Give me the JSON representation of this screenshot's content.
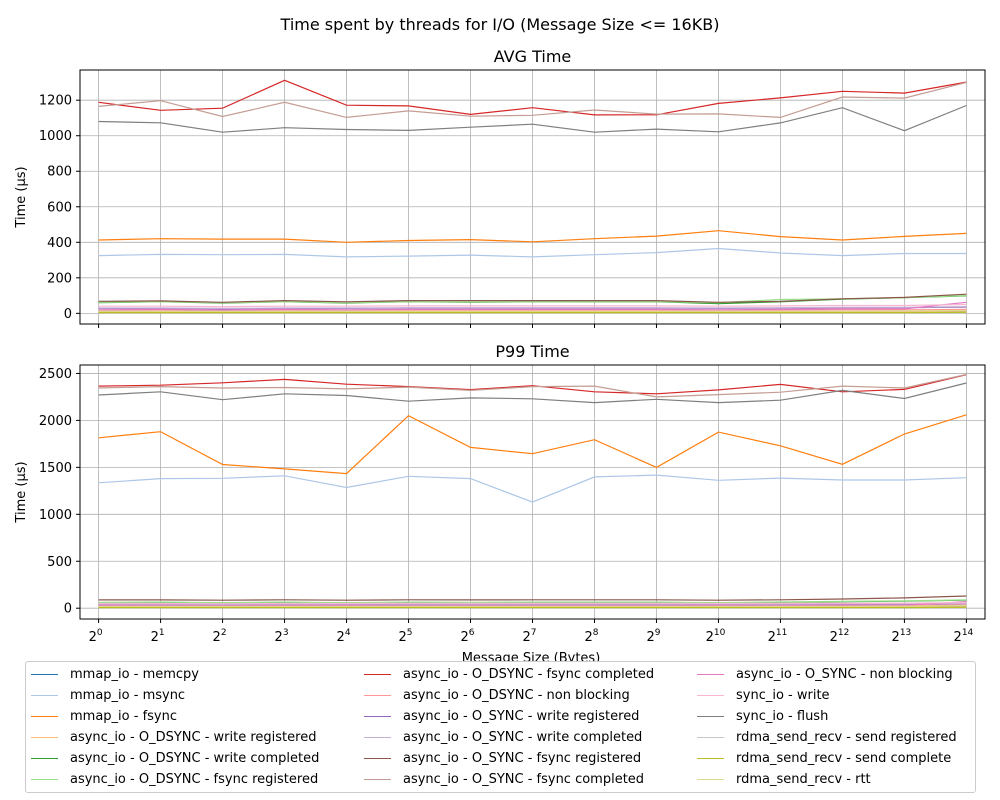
{
  "figure": {
    "suptitle": "Time spent by threads for I/O (Message Size <= 16KB)",
    "xlabel": "Message Size (Bytes)"
  },
  "chart_data": [
    {
      "type": "line",
      "title": "AVG Time",
      "xlabel": "",
      "ylabel": "Time (µs)",
      "x_exponents": [
        0,
        1,
        2,
        3,
        4,
        5,
        6,
        7,
        8,
        9,
        10,
        11,
        12,
        13,
        14
      ],
      "x_tick_base": "2",
      "ylim": [
        -60,
        1370
      ],
      "yticks": [
        0,
        200,
        400,
        600,
        800,
        1000,
        1200
      ],
      "grid": true,
      "series": [
        {
          "name": "mmap_io - memcpy",
          "color": "#1f77b4",
          "values": [
            8,
            8,
            8,
            8,
            8,
            8,
            8,
            8,
            8,
            8,
            8,
            8,
            8,
            8,
            8
          ]
        },
        {
          "name": "mmap_io - msync",
          "color": "#aec7e8",
          "values": [
            325,
            332,
            330,
            332,
            318,
            322,
            328,
            318,
            330,
            342,
            365,
            340,
            325,
            337,
            337
          ]
        },
        {
          "name": "mmap_io - fsync",
          "color": "#ff7f0e",
          "values": [
            413,
            420,
            418,
            418,
            400,
            410,
            415,
            403,
            420,
            435,
            465,
            432,
            413,
            433,
            450
          ]
        },
        {
          "name": "async_io - O_DSYNC - write registered",
          "color": "#ffbb78",
          "values": [
            10,
            10,
            10,
            10,
            10,
            10,
            10,
            10,
            10,
            10,
            10,
            10,
            10,
            10,
            12
          ]
        },
        {
          "name": "async_io - O_DSYNC - write completed",
          "color": "#2ca02c",
          "values": [
            60,
            65,
            58,
            65,
            58,
            65,
            62,
            65,
            65,
            65,
            55,
            65,
            80,
            88,
            98
          ]
        },
        {
          "name": "async_io - O_DSYNC - fsync registered",
          "color": "#98df8a",
          "values": [
            62,
            65,
            60,
            65,
            60,
            65,
            64,
            65,
            66,
            66,
            60,
            78,
            82,
            88,
            100
          ]
        },
        {
          "name": "async_io - O_DSYNC - fsync completed",
          "color": "#d62728",
          "values": [
            1188,
            1143,
            1155,
            1312,
            1172,
            1168,
            1120,
            1158,
            1117,
            1118,
            1182,
            1213,
            1250,
            1240,
            1302
          ]
        },
        {
          "name": "async_io - O_DSYNC - non blocking",
          "color": "#ff9896",
          "values": [
            18,
            18,
            15,
            18,
            18,
            18,
            18,
            18,
            18,
            18,
            18,
            18,
            20,
            20,
            22
          ]
        },
        {
          "name": "async_io - O_SYNC - write registered",
          "color": "#9467bd",
          "values": [
            28,
            28,
            25,
            28,
            28,
            30,
            30,
            30,
            30,
            30,
            28,
            30,
            32,
            32,
            35
          ]
        },
        {
          "name": "async_io - O_SYNC - write completed",
          "color": "#c5b0d5",
          "values": [
            30,
            30,
            28,
            30,
            30,
            32,
            32,
            32,
            32,
            32,
            30,
            32,
            34,
            34,
            38
          ]
        },
        {
          "name": "async_io - O_SYNC - fsync registered",
          "color": "#8c564b",
          "values": [
            68,
            70,
            62,
            72,
            65,
            72,
            72,
            72,
            72,
            72,
            62,
            68,
            82,
            90,
            108
          ]
        },
        {
          "name": "async_io - O_SYNC - fsync completed",
          "color": "#c49c94",
          "values": [
            1165,
            1197,
            1108,
            1188,
            1103,
            1140,
            1110,
            1115,
            1145,
            1122,
            1123,
            1103,
            1218,
            1212,
            1300
          ]
        },
        {
          "name": "async_io - O_SYNC - non blocking",
          "color": "#e377c2",
          "values": [
            20,
            22,
            18,
            22,
            20,
            22,
            22,
            22,
            22,
            22,
            20,
            22,
            25,
            25,
            62
          ]
        },
        {
          "name": "sync_io - write",
          "color": "#f7b6d2",
          "values": [
            40,
            40,
            38,
            40,
            40,
            42,
            42,
            42,
            42,
            42,
            40,
            42,
            44,
            44,
            50
          ]
        },
        {
          "name": "sync_io - flush",
          "color": "#7f7f7f",
          "values": [
            1080,
            1073,
            1020,
            1045,
            1035,
            1030,
            1048,
            1065,
            1020,
            1037,
            1022,
            1072,
            1158,
            1028,
            1170
          ]
        },
        {
          "name": "rdma_send_recv - send registered",
          "color": "#c7c7c7",
          "values": [
            5,
            5,
            5,
            5,
            5,
            5,
            5,
            5,
            5,
            5,
            5,
            5,
            5,
            5,
            5
          ]
        },
        {
          "name": "rdma_send_recv - send complete",
          "color": "#bcbd22",
          "values": [
            4,
            4,
            4,
            4,
            4,
            4,
            4,
            4,
            4,
            4,
            4,
            4,
            4,
            4,
            6
          ]
        },
        {
          "name": "rdma_send_recv - rtt",
          "color": "#dbdb8d",
          "values": [
            12,
            12,
            12,
            12,
            12,
            12,
            12,
            12,
            12,
            12,
            12,
            12,
            12,
            14,
            16
          ]
        }
      ]
    },
    {
      "type": "line",
      "title": "P99 Time",
      "xlabel": "Message Size (Bytes)",
      "ylabel": "Time (µs)",
      "x_exponents": [
        0,
        1,
        2,
        3,
        4,
        5,
        6,
        7,
        8,
        9,
        10,
        11,
        12,
        13,
        14
      ],
      "x_tick_base": "2",
      "ylim": [
        -115,
        2590
      ],
      "yticks": [
        0,
        500,
        1000,
        1500,
        2000,
        2500
      ],
      "grid": true,
      "series": [
        {
          "name": "mmap_io - memcpy",
          "color": "#1f77b4",
          "values": [
            12,
            12,
            12,
            12,
            12,
            12,
            12,
            12,
            12,
            12,
            12,
            12,
            12,
            12,
            12
          ]
        },
        {
          "name": "mmap_io - msync",
          "color": "#aec7e8",
          "values": [
            1335,
            1380,
            1383,
            1410,
            1285,
            1405,
            1380,
            1130,
            1398,
            1418,
            1362,
            1385,
            1365,
            1365,
            1390
          ]
        },
        {
          "name": "mmap_io - fsync",
          "color": "#ff7f0e",
          "values": [
            1815,
            1880,
            1530,
            1483,
            1433,
            2050,
            1712,
            1645,
            1795,
            1500,
            1875,
            1730,
            1532,
            1855,
            2060
          ]
        },
        {
          "name": "async_io - O_DSYNC - write registered",
          "color": "#ffbb78",
          "values": [
            18,
            18,
            18,
            18,
            18,
            18,
            18,
            18,
            18,
            18,
            18,
            18,
            18,
            18,
            22
          ]
        },
        {
          "name": "async_io - O_DSYNC - write completed",
          "color": "#2ca02c",
          "values": [
            60,
            62,
            58,
            62,
            58,
            62,
            60,
            62,
            62,
            62,
            58,
            62,
            70,
            75,
            85
          ]
        },
        {
          "name": "async_io - O_DSYNC - fsync registered",
          "color": "#98df8a",
          "values": [
            62,
            64,
            60,
            64,
            60,
            64,
            62,
            64,
            64,
            64,
            60,
            66,
            72,
            78,
            88
          ]
        },
        {
          "name": "async_io - O_DSYNC - fsync completed",
          "color": "#d62728",
          "values": [
            2365,
            2375,
            2400,
            2437,
            2385,
            2360,
            2328,
            2370,
            2305,
            2283,
            2325,
            2383,
            2305,
            2330,
            2487
          ]
        },
        {
          "name": "async_io - O_DSYNC - non blocking",
          "color": "#ff9896",
          "values": [
            28,
            28,
            26,
            28,
            28,
            28,
            28,
            28,
            28,
            28,
            28,
            28,
            30,
            30,
            34
          ]
        },
        {
          "name": "async_io - O_SYNC - write registered",
          "color": "#9467bd",
          "values": [
            40,
            40,
            38,
            40,
            40,
            42,
            42,
            42,
            42,
            42,
            40,
            42,
            44,
            44,
            48
          ]
        },
        {
          "name": "async_io - O_SYNC - write completed",
          "color": "#c5b0d5",
          "values": [
            44,
            44,
            42,
            44,
            44,
            46,
            46,
            46,
            46,
            46,
            44,
            46,
            48,
            48,
            52
          ]
        },
        {
          "name": "async_io - O_SYNC - fsync registered",
          "color": "#8c564b",
          "values": [
            88,
            88,
            85,
            90,
            85,
            90,
            88,
            90,
            90,
            90,
            85,
            90,
            98,
            110,
            130
          ]
        },
        {
          "name": "async_io - O_SYNC - fsync completed",
          "color": "#c49c94",
          "values": [
            2345,
            2360,
            2345,
            2350,
            2335,
            2355,
            2320,
            2360,
            2365,
            2250,
            2275,
            2300,
            2365,
            2345,
            2490
          ]
        },
        {
          "name": "async_io - O_SYNC - non blocking",
          "color": "#e377c2",
          "values": [
            30,
            30,
            28,
            30,
            30,
            30,
            30,
            30,
            30,
            30,
            30,
            30,
            32,
            32,
            70
          ]
        },
        {
          "name": "sync_io - write",
          "color": "#f7b6d2",
          "values": [
            50,
            50,
            48,
            50,
            50,
            52,
            52,
            52,
            52,
            52,
            50,
            52,
            54,
            54,
            60
          ]
        },
        {
          "name": "sync_io - flush",
          "color": "#7f7f7f",
          "values": [
            2270,
            2305,
            2220,
            2283,
            2265,
            2205,
            2240,
            2230,
            2190,
            2225,
            2190,
            2215,
            2320,
            2233,
            2398
          ]
        },
        {
          "name": "rdma_send_recv - send registered",
          "color": "#c7c7c7",
          "values": [
            8,
            8,
            8,
            8,
            8,
            8,
            8,
            8,
            8,
            8,
            8,
            8,
            8,
            8,
            8
          ]
        },
        {
          "name": "rdma_send_recv - send complete",
          "color": "#bcbd22",
          "values": [
            6,
            6,
            6,
            6,
            6,
            6,
            6,
            6,
            6,
            6,
            6,
            6,
            6,
            6,
            10
          ]
        },
        {
          "name": "rdma_send_recv - rtt",
          "color": "#dbdb8d",
          "values": [
            20,
            20,
            20,
            20,
            20,
            20,
            20,
            20,
            20,
            20,
            20,
            20,
            20,
            22,
            28
          ]
        }
      ]
    }
  ]
}
